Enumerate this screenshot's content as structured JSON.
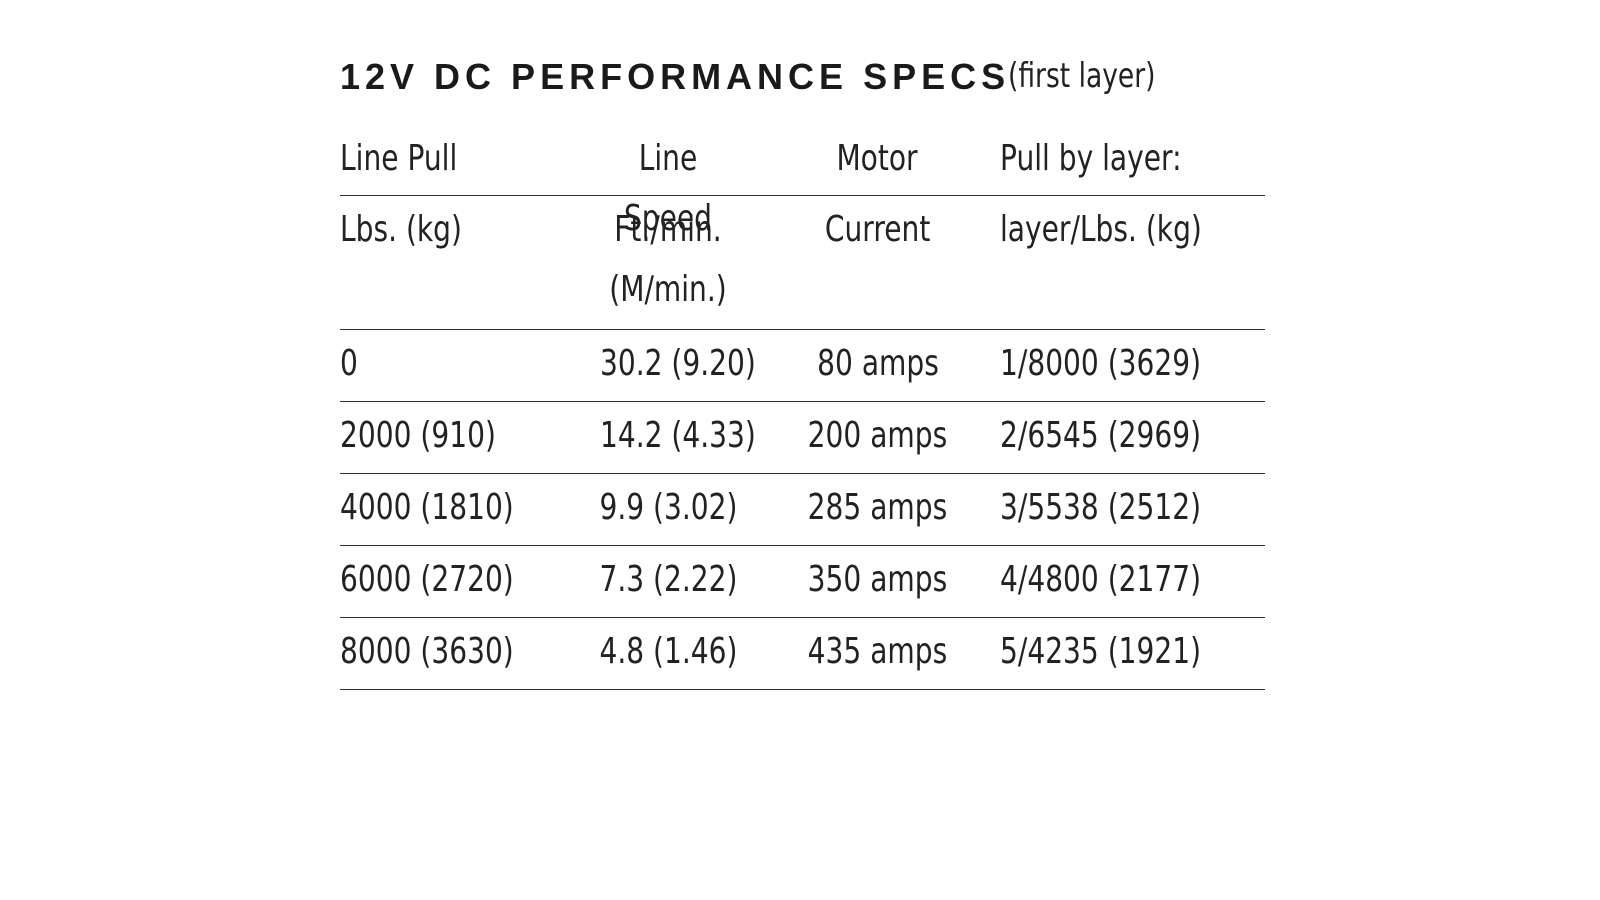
{
  "title": "12V DC PERFORMANCE SPECS",
  "subtitle": "(first layer)",
  "table": {
    "header_rows": [
      [
        "Line Pull",
        "Line Speed",
        "Motor",
        "Pull by layer:"
      ],
      [
        "Lbs. (kg)",
        "Ft./min. (M/min.)",
        "Current",
        "layer/Lbs. (kg)"
      ]
    ],
    "rows": [
      [
        "0",
        "30.2 (9.20)",
        "80 amps",
        "1/8000 (3629)"
      ],
      [
        "2000 (910)",
        "14.2 (4.33)",
        "200 amps",
        "2/6545 (2969)"
      ],
      [
        "4000 (1810)",
        "9.9 (3.02)",
        "285 amps",
        "3/5538 (2512)"
      ],
      [
        "6000 (2720)",
        "7.3 (2.22)",
        "350 amps",
        "4/4800 (2177)"
      ],
      [
        "8000 (3630)",
        "4.8 (1.46)",
        "435 amps",
        "5/4235 (1921)"
      ]
    ]
  }
}
